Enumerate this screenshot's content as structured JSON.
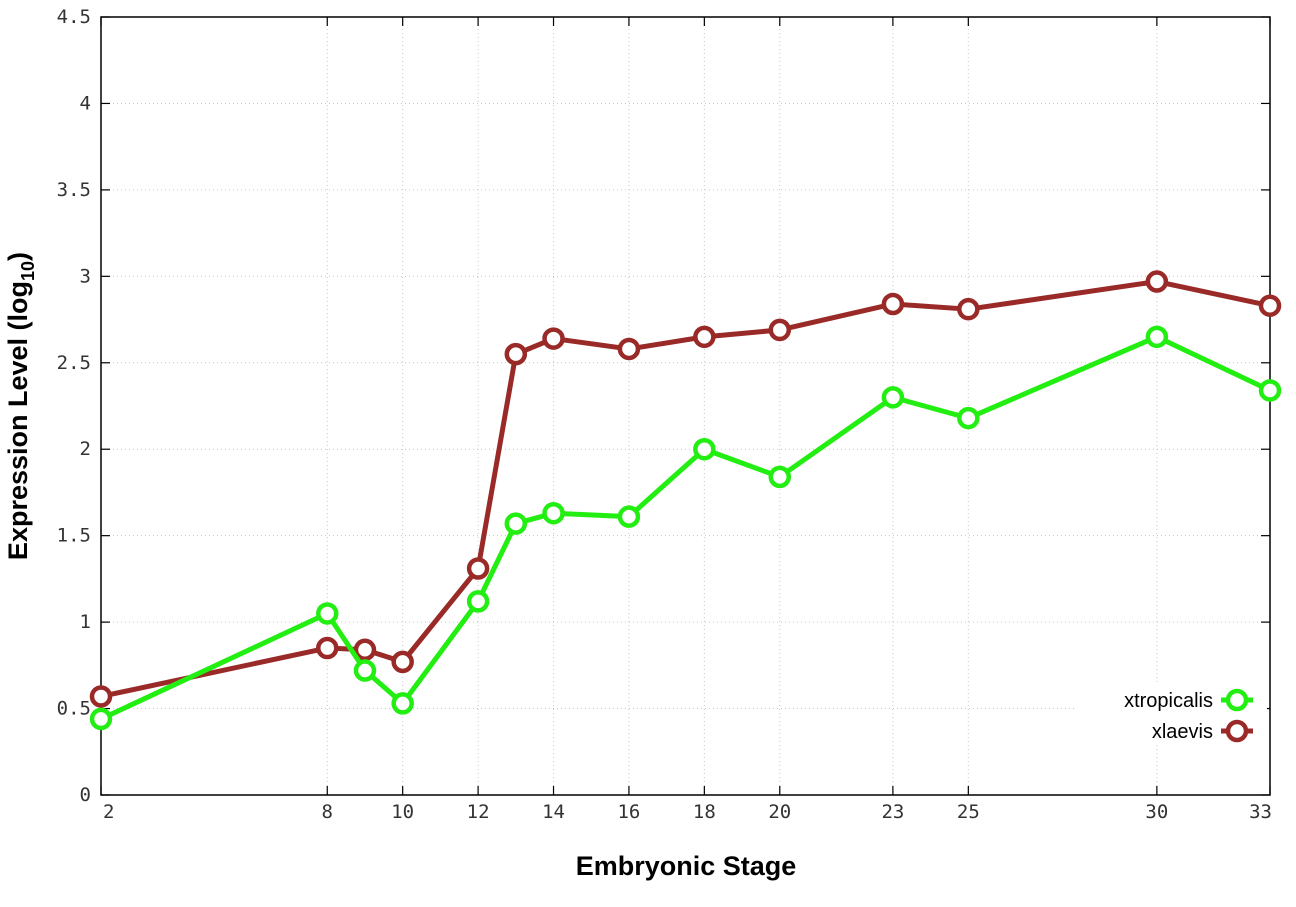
{
  "chart_data": {
    "type": "line",
    "xlabel": "Embryonic Stage",
    "ylabel_main": "Expression Level (log",
    "ylabel_sub": "10",
    "ylabel_close": ")",
    "x_ticks": [
      2,
      8,
      10,
      12,
      14,
      16,
      18,
      20,
      23,
      25,
      30,
      33
    ],
    "y_ticks": [
      "0",
      "0.5",
      "1",
      "1.5",
      "2",
      "2.5",
      "3",
      "3.5",
      "4",
      "4.5"
    ],
    "xlim": [
      2,
      33
    ],
    "ylim": [
      0,
      4.5
    ],
    "grid": true,
    "legend_position": "bottom-right",
    "series": [
      {
        "name": "xtropicalis",
        "color": "#22ee11",
        "x": [
          2,
          8,
          9,
          10,
          12,
          13,
          14,
          16,
          18,
          20,
          23,
          25,
          30,
          33
        ],
        "values": [
          0.44,
          1.05,
          0.72,
          0.53,
          1.12,
          1.57,
          1.63,
          1.61,
          2.0,
          1.84,
          2.3,
          2.18,
          2.65,
          2.34
        ]
      },
      {
        "name": "xlaevis",
        "color": "#992a28",
        "x": [
          2,
          8,
          9,
          10,
          12,
          13,
          14,
          16,
          18,
          20,
          23,
          25,
          30,
          33
        ],
        "values": [
          0.57,
          0.85,
          0.84,
          0.77,
          1.31,
          2.55,
          2.64,
          2.58,
          2.65,
          2.69,
          2.84,
          2.81,
          2.97,
          2.83
        ]
      }
    ]
  }
}
